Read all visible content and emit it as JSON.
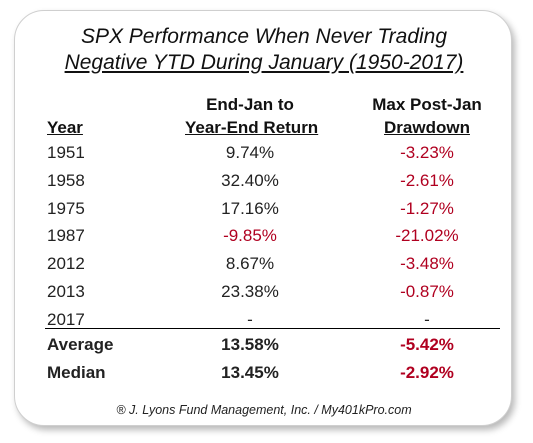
{
  "title_line1": "SPX Performance When Never Trading",
  "title_line2": "Negative YTD During January (1950-2017)",
  "headers": {
    "year": "Year",
    "return_line1": "End-Jan to",
    "return_line2": "Year-End Return",
    "drawdown_line1": "Max Post-Jan",
    "drawdown_line2": "Drawdown"
  },
  "rows": [
    {
      "year": "1951",
      "return": "9.74%",
      "drawdown": "-3.23%"
    },
    {
      "year": "1958",
      "return": "32.40%",
      "drawdown": "-2.61%"
    },
    {
      "year": "1975",
      "return": "17.16%",
      "drawdown": "-1.27%"
    },
    {
      "year": "1987",
      "return": "-9.85%",
      "drawdown": "-21.02%"
    },
    {
      "year": "2012",
      "return": "8.67%",
      "drawdown": "-3.48%"
    },
    {
      "year": "2013",
      "return": "23.38%",
      "drawdown": "-0.87%"
    },
    {
      "year": "2017",
      "return": "-",
      "drawdown": "-"
    }
  ],
  "summary": [
    {
      "label": "Average",
      "return": "13.58%",
      "drawdown": "-5.42%"
    },
    {
      "label": "Median",
      "return": "13.45%",
      "drawdown": "-2.92%"
    }
  ],
  "footer": "® J. Lyons Fund Management, Inc. / My401kPro.com",
  "colors": {
    "negative": "#b00020",
    "text": "#222222",
    "border": "#cfcfcf"
  },
  "chart_data": {
    "type": "table",
    "title": "SPX Performance When Never Trading Negative YTD During January (1950-2017)",
    "columns": [
      "Year",
      "End-Jan to Year-End Return",
      "Max Post-Jan Drawdown"
    ],
    "rows": [
      [
        "1951",
        9.74,
        -3.23
      ],
      [
        "1958",
        32.4,
        -2.61
      ],
      [
        "1975",
        17.16,
        -1.27
      ],
      [
        "1987",
        -9.85,
        -21.02
      ],
      [
        "2012",
        8.67,
        -3.48
      ],
      [
        "2013",
        23.38,
        -0.87
      ],
      [
        "2017",
        null,
        null
      ]
    ],
    "summary": [
      [
        "Average",
        13.58,
        -5.42
      ],
      [
        "Median",
        13.45,
        -2.92
      ]
    ]
  }
}
